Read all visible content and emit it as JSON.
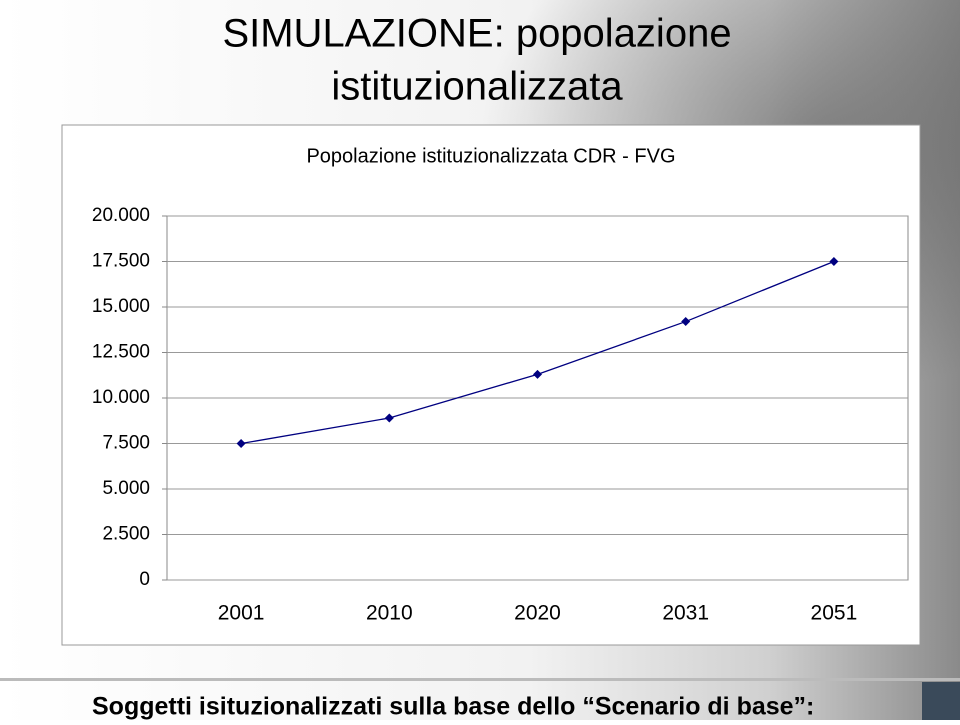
{
  "title": [
    "SIMULAZIONE: popolazione",
    "istituzionalizzata"
  ],
  "caption": "Soggetti isituzionalizzati sulla base dello “Scenario di base”:",
  "chart_data": {
    "type": "line",
    "title": "Popolazione istituzionalizzata CDR - FVG",
    "categories": [
      "2001",
      "2010",
      "2020",
      "2031",
      "2051"
    ],
    "values": [
      7500,
      8900,
      11300,
      14200,
      17500
    ],
    "color": "#000080",
    "ylim": [
      0,
      20000
    ],
    "yticks": [
      0,
      {
        "value": 2500,
        "label": "2.500"
      },
      {
        "value": 5000,
        "label": "5.000"
      },
      {
        "value": 7500,
        "label": "7.500"
      },
      {
        "value": 10000,
        "label": "10.000"
      },
      {
        "value": 12500,
        "label": "12.500"
      },
      {
        "value": 15000,
        "label": "15.000"
      },
      {
        "value": 17500,
        "label": "17.500"
      },
      {
        "value": 20000,
        "label": "20.000"
      }
    ],
    "grid": true
  }
}
